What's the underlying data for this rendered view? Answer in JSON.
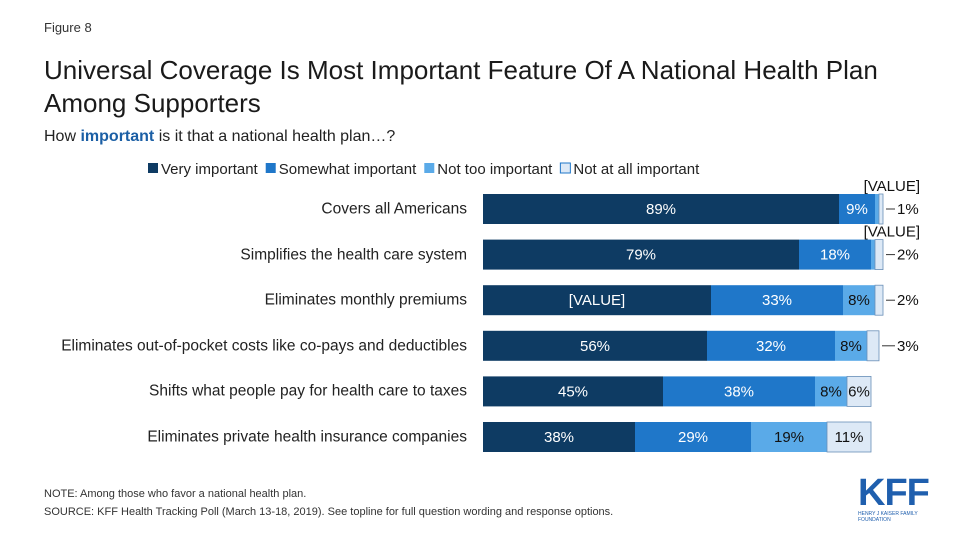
{
  "figure_label": "Figure 8",
  "chart_data": {
    "type": "bar",
    "orientation": "horizontal",
    "stacked": true,
    "title": "Universal Coverage Is Most Important Feature Of A National Health Plan Among Supporters",
    "subtitle": [
      "How",
      "important",
      "is it that a national health plan…?"
    ],
    "categories": [
      "Covers all Americans",
      "Simplifies the health care system",
      "Eliminates monthly premiums",
      "Eliminates out-of-pocket costs like co-pays and deductibles",
      "Shifts what people pay for health care to taxes",
      "Eliminates private health insurance companies"
    ],
    "series": [
      {
        "name": "Very important",
        "color": "#0e3b63",
        "values": [
          89,
          79,
          57,
          56,
          45,
          38
        ],
        "value_labels": [
          "89%",
          "79%",
          "[VALUE]",
          "56%",
          "45%",
          "38%"
        ]
      },
      {
        "name": "Somewhat important",
        "color": "#1f77c9",
        "values": [
          9,
          18,
          33,
          32,
          38,
          29
        ],
        "value_labels": [
          "9%",
          "18%",
          "33%",
          "32%",
          "38%",
          "29%"
        ]
      },
      {
        "name": "Not too important",
        "color": "#5aaae8",
        "values": [
          1,
          1,
          8,
          8,
          8,
          19
        ],
        "value_labels": [
          "[VALUE]",
          "[VALUE]",
          "8%",
          "8%",
          "8%",
          "19%"
        ]
      },
      {
        "name": "Not at all important",
        "color": "#dde9f6",
        "values": [
          1,
          2,
          2,
          3,
          6,
          11
        ],
        "value_labels": [
          "1%",
          "2%",
          "2%",
          "3%",
          "6%",
          "11%"
        ]
      }
    ],
    "legend": "top"
  },
  "note": "NOTE: Among those who favor a national health plan.",
  "source": "SOURCE: KFF Health Tracking Poll (March 13-18, 2019). See topline for full question wording and response options.",
  "logo": {
    "name": "KFF",
    "subtitle": "HENRY J KAISER FAMILY FOUNDATION"
  }
}
